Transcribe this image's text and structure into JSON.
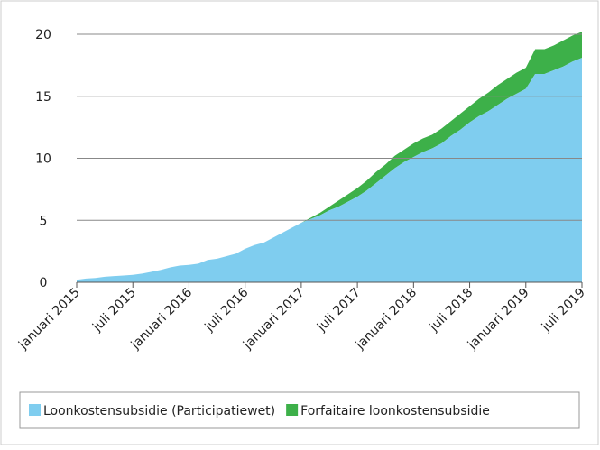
{
  "chart_data": {
    "type": "stacked_area",
    "categories": [
      "januari 2015",
      null,
      null,
      null,
      null,
      null,
      "juli 2015",
      null,
      null,
      null,
      null,
      null,
      "januari 2016",
      null,
      null,
      null,
      null,
      null,
      "juli 2016",
      null,
      null,
      null,
      null,
      null,
      "januari 2017",
      null,
      null,
      null,
      null,
      null,
      "juli 2017",
      null,
      null,
      null,
      null,
      null,
      "januari 2018",
      null,
      null,
      null,
      null,
      null,
      "juli 2018",
      null,
      null,
      null,
      null,
      null,
      "januari 2019",
      null,
      null,
      null,
      null,
      null,
      "juli 2019"
    ],
    "series": [
      {
        "name": "Loonkostensubsidie (Participatiewet)",
        "color": "#7fcdef",
        "values": [
          0.2,
          0.3,
          0.35,
          0.45,
          0.5,
          0.55,
          0.6,
          0.7,
          0.85,
          1.0,
          1.2,
          1.35,
          1.4,
          1.5,
          1.8,
          1.9,
          2.1,
          2.3,
          2.7,
          3.0,
          3.2,
          3.6,
          4.0,
          4.4,
          4.8,
          5.1,
          5.4,
          5.8,
          6.1,
          6.5,
          6.9,
          7.4,
          8.0,
          8.6,
          9.2,
          9.7,
          10.1,
          10.5,
          10.8,
          11.2,
          11.8,
          12.3,
          12.9,
          13.4,
          13.8,
          14.3,
          14.8,
          15.2,
          15.6,
          16.8,
          16.8,
          17.1,
          17.4,
          17.8,
          18.1
        ]
      },
      {
        "name": "Forfaitaire loonkostensubsidie",
        "color": "#3db049",
        "values": [
          0,
          0,
          0,
          0,
          0,
          0,
          0,
          0,
          0,
          0,
          0,
          0,
          0,
          0,
          0,
          0,
          0,
          0,
          0,
          0,
          0,
          0,
          0,
          0,
          0,
          0.1,
          0.2,
          0.3,
          0.5,
          0.6,
          0.7,
          0.8,
          0.9,
          0.9,
          1.0,
          1.0,
          1.1,
          1.1,
          1.1,
          1.2,
          1.2,
          1.3,
          1.3,
          1.4,
          1.5,
          1.6,
          1.6,
          1.7,
          1.7,
          2.0,
          2.0,
          2.0,
          2.1,
          2.1,
          2.1
        ]
      }
    ],
    "ylim": [
      0,
      20
    ],
    "yticks": [
      0,
      5,
      10,
      15,
      20
    ],
    "grid": true,
    "legend": "bottom"
  }
}
